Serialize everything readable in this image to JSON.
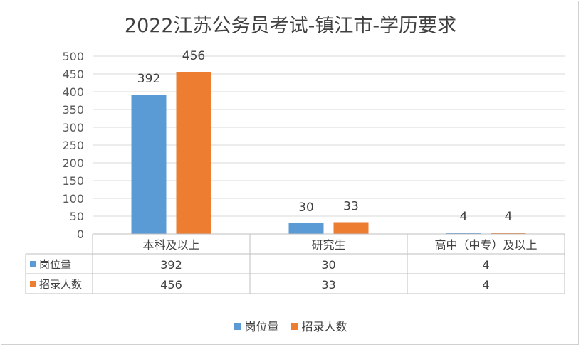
{
  "chart_data": {
    "type": "bar",
    "title": "2022江苏公务员考试-镇江市-学历要求",
    "categories": [
      "本科及以上",
      "研究生",
      "高中（中专）及以上"
    ],
    "series": [
      {
        "name": "岗位量",
        "values": [
          392,
          30,
          4
        ],
        "color": "#5b9bd5"
      },
      {
        "name": "招录人数",
        "values": [
          456,
          33,
          4
        ],
        "color": "#ed7d31"
      }
    ],
    "ylim": [
      0,
      500
    ],
    "yticks": [
      0,
      50,
      100,
      150,
      200,
      250,
      300,
      350,
      400,
      450,
      500
    ],
    "grid": true,
    "data_table": true,
    "legend": "bottom"
  }
}
